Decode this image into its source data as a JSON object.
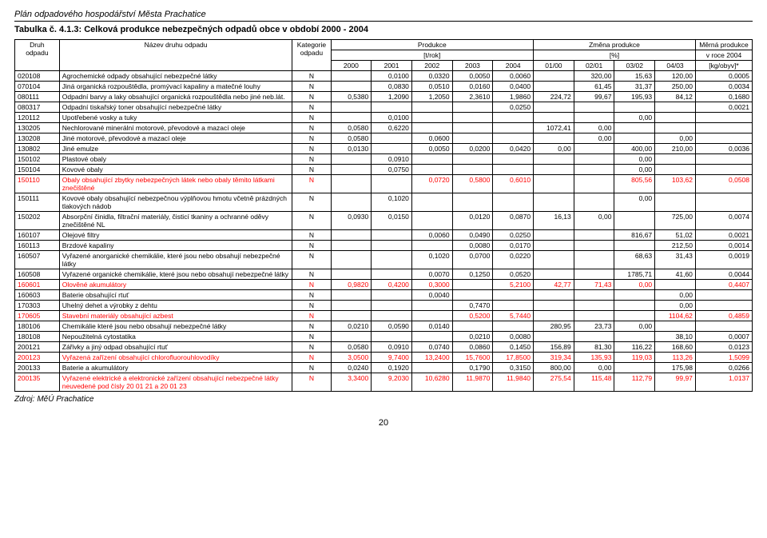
{
  "doc_title": "Plán odpadového hospodářství Města Prachatice",
  "table_caption": "Tabulka č. 4.1.3:    Celková produkce nebezpečných odpadů obce v období 2000 - 2004",
  "header": {
    "code": "Druh odpadu",
    "name": "Název druhu odpadu",
    "cat": "Kategorie odpadu",
    "prod": "Produkce",
    "change": "Změna produkce",
    "unit": "Měrná produkce",
    "trok": "[t/rok]",
    "pct": "[%]",
    "yearunit": "v roce 2004",
    "y2000": "2000",
    "y2001": "2001",
    "y2002": "2002",
    "y2003": "2003",
    "y2004": "2004",
    "c1": "01/00",
    "c2": "02/01",
    "c3": "03/02",
    "c4": "04/03",
    "kg": "[kg/obyv]*"
  },
  "rows": [
    {
      "code": "020108",
      "name": "Agrochemické odpady obsahující nebezpečné látky",
      "cat": "N",
      "y00": "",
      "y01": "0,0100",
      "y02": "0,0320",
      "y03": "0,0050",
      "y04": "0,0060",
      "c1": "",
      "c2": "320,00",
      "c3": "15,63",
      "c4": "120,00",
      "kg": "0,0005",
      "red": false
    },
    {
      "code": "070104",
      "name": "Jiná organická rozpouštědla, promývací kapaliny a matečné louhy",
      "cat": "N",
      "y00": "",
      "y01": "0,0830",
      "y02": "0,0510",
      "y03": "0,0160",
      "y04": "0,0400",
      "c1": "",
      "c2": "61,45",
      "c3": "31,37",
      "c4": "250,00",
      "kg": "0,0034",
      "red": false
    },
    {
      "code": "080111",
      "name": "Odpadní barvy a laky obsahující organická rozpouštědla nebo jiné neb.lát.",
      "cat": "N",
      "y00": "0,5380",
      "y01": "1,2090",
      "y02": "1,2050",
      "y03": "2,3610",
      "y04": "1,9860",
      "c1": "224,72",
      "c2": "99,67",
      "c3": "195,93",
      "c4": "84,12",
      "kg": "0,1680",
      "red": false
    },
    {
      "code": "080317",
      "name": "Odpadní tiskařský toner obsahující nebezpečné látky",
      "cat": "N",
      "y00": "",
      "y01": "",
      "y02": "",
      "y03": "",
      "y04": "0,0250",
      "c1": "",
      "c2": "",
      "c3": "",
      "c4": "",
      "kg": "0,0021",
      "red": false
    },
    {
      "code": "120112",
      "name": "Upotřebené vosky a tuky",
      "cat": "N",
      "y00": "",
      "y01": "0,0100",
      "y02": "",
      "y03": "",
      "y04": "",
      "c1": "",
      "c2": "",
      "c3": "0,00",
      "c4": "",
      "kg": "",
      "red": false
    },
    {
      "code": "130205",
      "name": "Nechlorované minerální motorové, převodové a mazací oleje",
      "cat": "N",
      "y00": "0,0580",
      "y01": "0,6220",
      "y02": "",
      "y03": "",
      "y04": "",
      "c1": "1072,41",
      "c2": "0,00",
      "c3": "",
      "c4": "",
      "kg": "",
      "red": false
    },
    {
      "code": "130208",
      "name": "Jiné motorové, převodové a mazací oleje",
      "cat": "N",
      "y00": "0,0580",
      "y01": "",
      "y02": "0,0600",
      "y03": "",
      "y04": "",
      "c1": "",
      "c2": "0,00",
      "c3": "",
      "c4": "0,00",
      "kg": "",
      "red": false
    },
    {
      "code": "130802",
      "name": "Jiné emulze",
      "cat": "N",
      "y00": "0,0130",
      "y01": "",
      "y02": "0,0050",
      "y03": "0,0200",
      "y04": "0,0420",
      "c1": "0,00",
      "c2": "",
      "c3": "400,00",
      "c4": "210,00",
      "kg": "0,0036",
      "red": false
    },
    {
      "code": "150102",
      "name": "Plastové obaly",
      "cat": "N",
      "y00": "",
      "y01": "0,0910",
      "y02": "",
      "y03": "",
      "y04": "",
      "c1": "",
      "c2": "",
      "c3": "0,00",
      "c4": "",
      "kg": "",
      "red": false
    },
    {
      "code": "150104",
      "name": "Kovové obaly",
      "cat": "N",
      "y00": "",
      "y01": "0,0750",
      "y02": "",
      "y03": "",
      "y04": "",
      "c1": "",
      "c2": "",
      "c3": "0,00",
      "c4": "",
      "kg": "",
      "red": false
    },
    {
      "code": "150110",
      "name": "Obaly obsahující zbytky nebezpečných látek nebo obaly těmito látkami znečištěné",
      "cat": "N",
      "y00": "",
      "y01": "",
      "y02": "0,0720",
      "y03": "0,5800",
      "y04": "0,6010",
      "c1": "",
      "c2": "",
      "c3": "805,56",
      "c4": "103,62",
      "kg": "0,0508",
      "red": true
    },
    {
      "code": "150111",
      "name": "Kovové obaly obsahující nebezpečnou výplňovou hmotu včetně prázdných tlakových nádob",
      "cat": "N",
      "y00": "",
      "y01": "0,1020",
      "y02": "",
      "y03": "",
      "y04": "",
      "c1": "",
      "c2": "",
      "c3": "0,00",
      "c4": "",
      "kg": "",
      "red": false
    },
    {
      "code": "150202",
      "name": "Absorpční činidla, filtrační materiály, čisticí tkaniny a ochranné oděvy znečištěné NL",
      "cat": "N",
      "y00": "0,0930",
      "y01": "0,0150",
      "y02": "",
      "y03": "0,0120",
      "y04": "0,0870",
      "c1": "16,13",
      "c2": "0,00",
      "c3": "",
      "c4": "725,00",
      "kg": "0,0074",
      "red": false
    },
    {
      "code": "160107",
      "name": "Olejové filtry",
      "cat": "N",
      "y00": "",
      "y01": "",
      "y02": "0,0060",
      "y03": "0,0490",
      "y04": "0,0250",
      "c1": "",
      "c2": "",
      "c3": "816,67",
      "c4": "51,02",
      "kg": "0,0021",
      "red": false
    },
    {
      "code": "160113",
      "name": "Brzdové kapaliny",
      "cat": "N",
      "y00": "",
      "y01": "",
      "y02": "",
      "y03": "0,0080",
      "y04": "0,0170",
      "c1": "",
      "c2": "",
      "c3": "",
      "c4": "212,50",
      "kg": "0,0014",
      "red": false
    },
    {
      "code": "160507",
      "name": "Vyřazené anorganické chemikálie, které jsou nebo obsahují nebezpečné látky",
      "cat": "N",
      "y00": "",
      "y01": "",
      "y02": "0,1020",
      "y03": "0,0700",
      "y04": "0,0220",
      "c1": "",
      "c2": "",
      "c3": "68,63",
      "c4": "31,43",
      "kg": "0,0019",
      "red": false
    },
    {
      "code": "160508",
      "name": "Vyřazené organické chemikálie, které jsou nebo obsahují nebezpečné látky",
      "cat": "N",
      "y00": "",
      "y01": "",
      "y02": "0,0070",
      "y03": "0,1250",
      "y04": "0,0520",
      "c1": "",
      "c2": "",
      "c3": "1785,71",
      "c4": "41,60",
      "kg": "0,0044",
      "red": false
    },
    {
      "code": "160601",
      "name": "Olověné akumulátory",
      "cat": "N",
      "y00": "0,9820",
      "y01": "0,4200",
      "y02": "0,3000",
      "y03": "",
      "y04": "5,2100",
      "c1": "42,77",
      "c2": "71,43",
      "c3": "0,00",
      "c4": "",
      "kg": "0,4407",
      "red": true
    },
    {
      "code": "160603",
      "name": "Baterie obsahující rtuť",
      "cat": "N",
      "y00": "",
      "y01": "",
      "y02": "0,0040",
      "y03": "",
      "y04": "",
      "c1": "",
      "c2": "",
      "c3": "",
      "c4": "0,00",
      "kg": "",
      "red": false
    },
    {
      "code": "170303",
      "name": "Uhelný dehet a výrobky z dehtu",
      "cat": "N",
      "y00": "",
      "y01": "",
      "y02": "",
      "y03": "0,7470",
      "y04": "",
      "c1": "",
      "c2": "",
      "c3": "",
      "c4": "0,00",
      "kg": "",
      "red": false
    },
    {
      "code": "170605",
      "name": "Stavební materiály obsahující azbest",
      "cat": "N",
      "y00": "",
      "y01": "",
      "y02": "",
      "y03": "0,5200",
      "y04": "5,7440",
      "c1": "",
      "c2": "",
      "c3": "",
      "c4": "1104,62",
      "kg": "0,4859",
      "red": true
    },
    {
      "code": "180106",
      "name": "Chemikálie které jsou nebo obsahují nebezpečné látky",
      "cat": "N",
      "y00": "0,0210",
      "y01": "0,0590",
      "y02": "0,0140",
      "y03": "",
      "y04": "",
      "c1": "280,95",
      "c2": "23,73",
      "c3": "0,00",
      "c4": "",
      "kg": "",
      "red": false
    },
    {
      "code": "180108",
      "name": "Nepoužitelná cytostatika",
      "cat": "N",
      "y00": "",
      "y01": "",
      "y02": "",
      "y03": "0,0210",
      "y04": "0,0080",
      "c1": "",
      "c2": "",
      "c3": "",
      "c4": "38,10",
      "kg": "0,0007",
      "red": false
    },
    {
      "code": "200121",
      "name": "Zářivky a jiný odpad obsahující rtuť",
      "cat": "N",
      "y00": "0,0580",
      "y01": "0,0910",
      "y02": "0,0740",
      "y03": "0,0860",
      "y04": "0,1450",
      "c1": "156,89",
      "c2": "81,30",
      "c3": "116,22",
      "c4": "168,60",
      "kg": "0,0123",
      "red": false
    },
    {
      "code": "200123",
      "name": "Vyřazená zařízení obsahující chlorofluorouhlovodíky",
      "cat": "N",
      "y00": "3,0500",
      "y01": "9,7400",
      "y02": "13,2400",
      "y03": "15,7600",
      "y04": "17,8500",
      "c1": "319,34",
      "c2": "135,93",
      "c3": "119,03",
      "c4": "113,26",
      "kg": "1,5099",
      "red": true
    },
    {
      "code": "200133",
      "name": "Baterie a akumulátory",
      "cat": "N",
      "y00": "0,0240",
      "y01": "0,1920",
      "y02": "",
      "y03": "0,1790",
      "y04": "0,3150",
      "c1": "800,00",
      "c2": "0,00",
      "c3": "",
      "c4": "175,98",
      "kg": "0,0266",
      "red": false
    },
    {
      "code": "200135",
      "name": "Vyřazené elektrické a elektronické zařízení obsahující nebezpečné látky neuvedené pod čísly 20 01 21 a 20 01 23",
      "cat": "N",
      "y00": "3,3400",
      "y01": "9,2030",
      "y02": "10,6280",
      "y03": "11,9870",
      "y04": "11,9840",
      "c1": "275,54",
      "c2": "115,48",
      "c3": "112,79",
      "c4": "99,97",
      "kg": "1,0137",
      "red": true
    }
  ],
  "source": "Zdroj: MěÚ Prachatice",
  "page_num": "20"
}
